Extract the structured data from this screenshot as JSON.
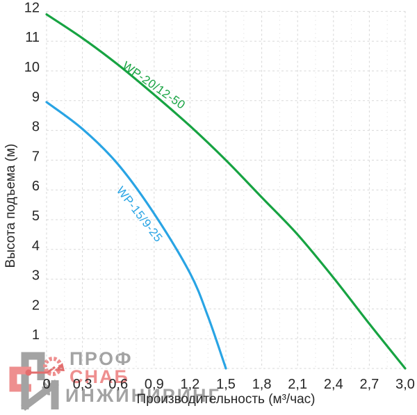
{
  "chart_data": {
    "type": "line",
    "title": "",
    "xlabel": "Производительность (м³/час)",
    "ylabel": "Высота подъема (м)",
    "xlim": [
      0,
      3.0
    ],
    "ylim": [
      0,
      12.3
    ],
    "x_tick_values": [
      0,
      0.3,
      0.6,
      0.9,
      1.2,
      1.5,
      1.8,
      2.1,
      2.4,
      2.7,
      3.0
    ],
    "x_tick_labels": [
      "0",
      "0,3",
      "0,6",
      "0,9",
      "1,2",
      "1,5",
      "1,8",
      "2,1",
      "2,4",
      "2,7",
      "3,0"
    ],
    "y_tick_values": [
      1,
      2,
      3,
      4,
      5,
      6,
      7,
      8,
      9,
      10,
      11,
      12
    ],
    "y_tick_labels": [
      "1",
      "2",
      "3",
      "4",
      "5",
      "6",
      "7",
      "8",
      "9",
      "10",
      "11",
      "12"
    ],
    "grid": {
      "style": "dashed",
      "major_color": "#d7d7d7",
      "minor_color": "#e2e2e2",
      "x_major_step": 0.3,
      "x_minor_step": 0.15,
      "y_major_step": 1,
      "baseline_y": 0
    },
    "legend_position": "labels-on-curves",
    "text_color": "#262626",
    "series": [
      {
        "name": "WP-20/12-50",
        "color": "#17a342",
        "x": [
          0,
          0.3,
          0.6,
          0.9,
          1.2,
          1.5,
          1.8,
          2.1,
          2.4,
          2.7,
          3.0
        ],
        "y": [
          11.9,
          11.1,
          10.2,
          9.2,
          8.15,
          7.0,
          5.75,
          4.5,
          3.05,
          1.5,
          0
        ]
      },
      {
        "name": "WP-15/9-25",
        "color": "#29a4e4",
        "x": [
          0,
          0.3,
          0.6,
          0.9,
          1.2,
          1.35,
          1.5
        ],
        "y": [
          8.95,
          8.05,
          6.85,
          5.2,
          3.2,
          1.75,
          0
        ]
      }
    ]
  },
  "watermark": {
    "line1": "ПРОФ",
    "line2": "СНАБ",
    "line3": "ИНЖИНИРИНГ",
    "gray_color": "#a3a3a3",
    "pink_color": "#ee8f8f",
    "red_color": "#e36d6d"
  }
}
